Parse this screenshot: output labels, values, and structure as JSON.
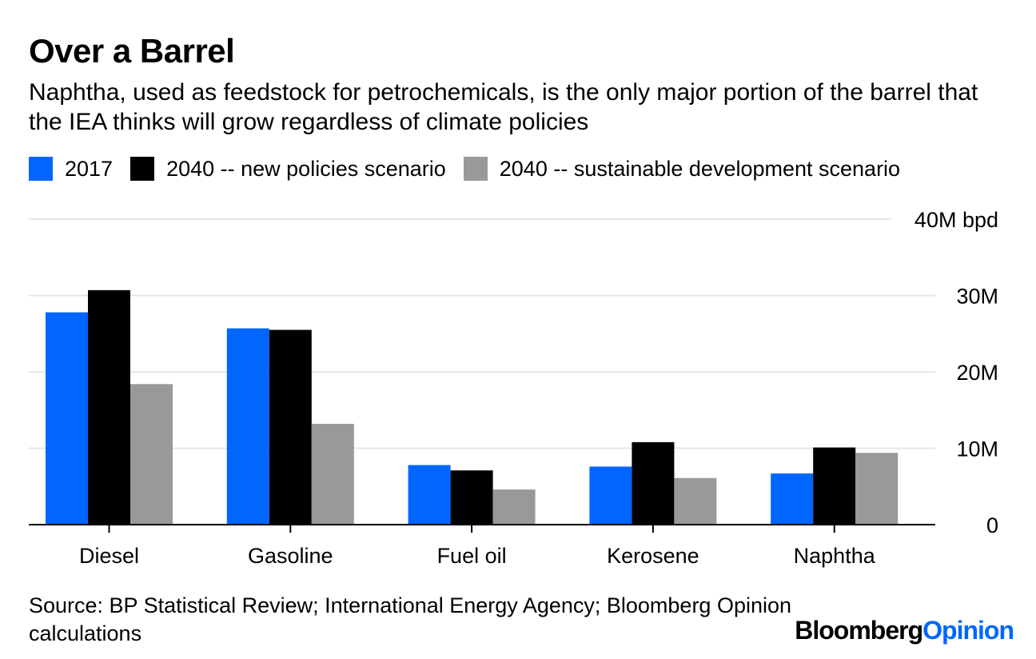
{
  "header": {
    "title": "Over a Barrel",
    "subtitle": "Naphtha, used as feedstock for petrochemicals, is the only major portion of the barrel that the IEA thinks will grow regardless of climate policies"
  },
  "footer": {
    "source": "Source: BP Statistical Review; International Energy Agency; Bloomberg Opinion calculations",
    "logo_part1": "Bloomberg",
    "logo_part2": "Opinion"
  },
  "colors": {
    "series_2017": "#0066ff",
    "series_new_policies": "#000000",
    "series_sustainable": "#999999",
    "gridline": "#e6e6e6"
  },
  "chart_data": {
    "type": "bar",
    "title": "Over a Barrel",
    "categories": [
      "Diesel",
      "Gasoline",
      "Fuel oil",
      "Kerosene",
      "Naphtha"
    ],
    "series": [
      {
        "name": "2017",
        "color": "#0066ff",
        "values": [
          27.8,
          25.7,
          7.8,
          7.6,
          6.7
        ]
      },
      {
        "name": "2040 -- new policies scenario",
        "color": "#000000",
        "values": [
          30.7,
          25.5,
          7.1,
          10.8,
          10.1
        ]
      },
      {
        "name": "2040 -- sustainable development scenario",
        "color": "#999999",
        "values": [
          18.4,
          13.2,
          4.6,
          6.1,
          9.4
        ]
      }
    ],
    "yticks": [
      0,
      10,
      20,
      30,
      40
    ],
    "ytick_labels": [
      "0",
      "10M",
      "20M",
      "30M",
      "40M bpd"
    ],
    "ylim": [
      0,
      40
    ],
    "xlabel": "",
    "ylabel": "",
    "grid": true,
    "legend_position": "top-left"
  }
}
